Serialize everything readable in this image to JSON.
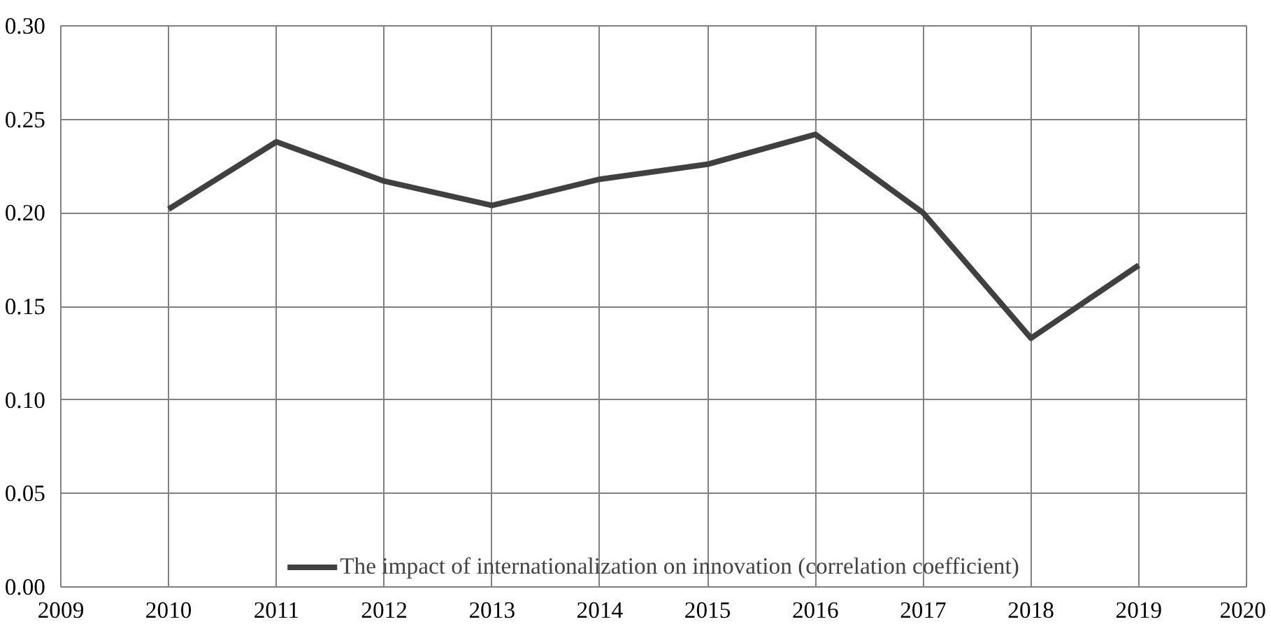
{
  "chart_data": {
    "type": "line",
    "x": [
      2010,
      2011,
      2012,
      2013,
      2014,
      2015,
      2016,
      2017,
      2018,
      2019
    ],
    "series": [
      {
        "name": "The impact of internationalization on innovation (correlation coefficient)",
        "color": "#404040",
        "values": [
          0.202,
          0.238,
          0.217,
          0.204,
          0.218,
          0.226,
          0.242,
          0.2,
          0.133,
          0.172
        ]
      }
    ],
    "xlim": [
      2009,
      2020
    ],
    "xticks": [
      2009,
      2010,
      2011,
      2012,
      2013,
      2014,
      2015,
      2016,
      2017,
      2018,
      2019,
      2020
    ],
    "ylim": [
      0,
      0.3
    ],
    "yticks": [
      {
        "value": 0,
        "label": "0.00"
      },
      {
        "value": 0.05,
        "label": "0.05"
      },
      {
        "value": 0.1,
        "label": "0.10"
      },
      {
        "value": 0.15,
        "label": "0.15"
      },
      {
        "value": 0.2,
        "label": "0.20"
      },
      {
        "value": 0.25,
        "label": "0.25"
      },
      {
        "value": 0.3,
        "label": "0.30"
      }
    ],
    "grid": true,
    "legend": "bottom",
    "marker": "none",
    "line_style": "solid"
  }
}
